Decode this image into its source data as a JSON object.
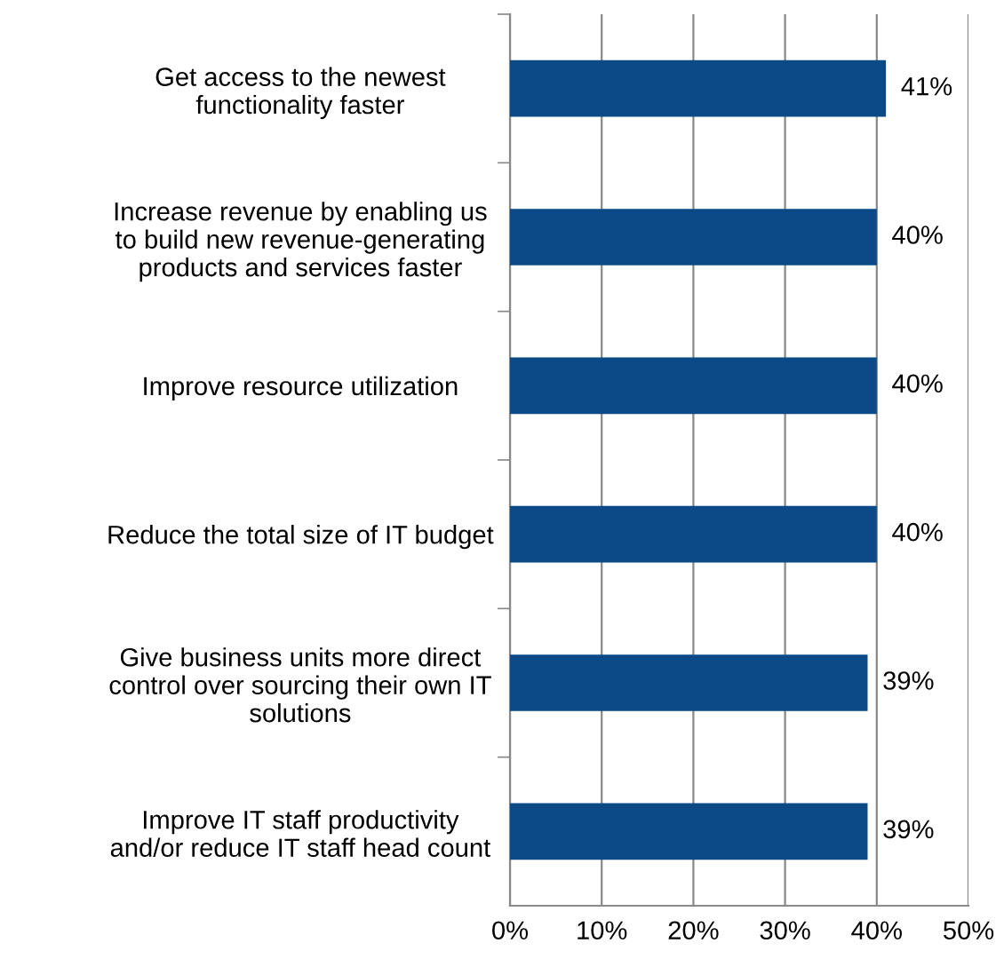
{
  "chart_data": {
    "type": "bar",
    "orientation": "horizontal",
    "categories": [
      "Get access to the newest\nfunctionality faster",
      "Increase revenue by enabling us\nto build new revenue-generating\nproducts and services faster",
      "Improve resource utilization",
      "Reduce the total size of IT budget",
      "Give business units more direct\ncontrol over sourcing their own IT\nsolutions",
      "Improve IT staff productivity\nand/or reduce IT staff head count"
    ],
    "values": [
      41,
      40,
      40,
      40,
      39,
      39
    ],
    "value_labels": [
      "41%",
      "40%",
      "40%",
      "40%",
      "39%",
      "39%"
    ],
    "color": "#0b4a86",
    "xlim": [
      0,
      50
    ],
    "xticks": [
      {
        "value": 0,
        "label": "0%"
      },
      {
        "value": 10,
        "label": "10%"
      },
      {
        "value": 20,
        "label": "20%"
      },
      {
        "value": 30,
        "label": "30%"
      },
      {
        "value": 40,
        "label": "40%"
      },
      {
        "value": 50,
        "label": "50%"
      }
    ],
    "grid": "x"
  }
}
